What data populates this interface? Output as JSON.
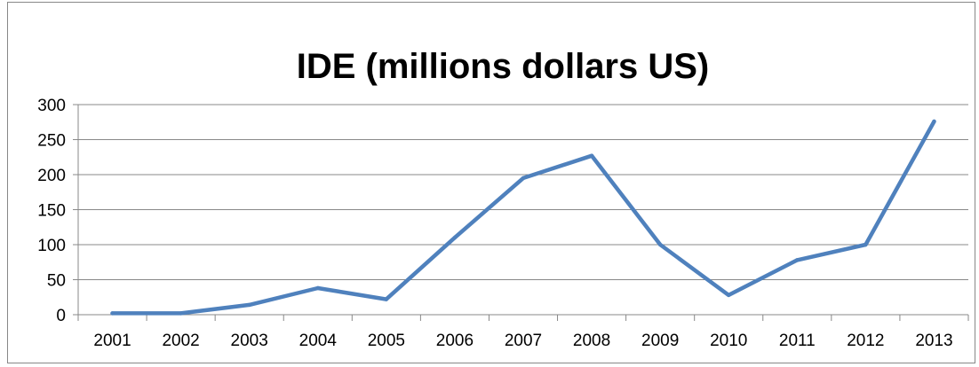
{
  "chart_data": {
    "type": "line",
    "title": "IDE  (millions dollars US)",
    "xlabel": "",
    "ylabel": "",
    "categories": [
      "2001",
      "2002",
      "2003",
      "2004",
      "2005",
      "2006",
      "2007",
      "2008",
      "2009",
      "2010",
      "2011",
      "2012",
      "2013"
    ],
    "series": [
      {
        "values": [
          2,
          2,
          14,
          38,
          22,
          110,
          195,
          227,
          100,
          28,
          78,
          100,
          276
        ]
      }
    ],
    "ylim": [
      0,
      300
    ],
    "yticks": [
      0,
      50,
      100,
      150,
      200,
      250,
      300
    ],
    "grid": true,
    "legend": "none",
    "colors": {
      "line": "#4f81bd",
      "grid": "#888888",
      "axis": "#888888"
    }
  }
}
